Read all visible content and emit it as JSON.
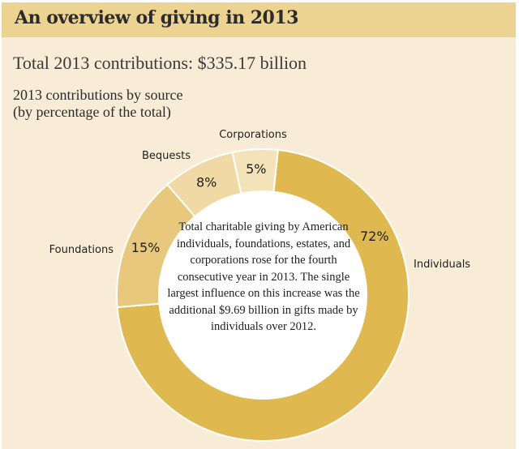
{
  "header": {
    "title": "An overview of giving in 2013"
  },
  "total": "Total 2013 contributions: $335.17 billion",
  "chart_data": {
    "type": "pie",
    "donut": true,
    "title": "2013 contributions by source",
    "subtitle": "(by percentage of the total)",
    "categories": [
      "Individuals",
      "Foundations",
      "Bequests",
      "Corporations"
    ],
    "values": [
      72,
      15,
      8,
      5
    ],
    "value_labels": [
      "72%",
      "15%",
      "8%",
      "5%"
    ],
    "colors": [
      "#dfb84f",
      "#e8c87c",
      "#f0d9a4",
      "#f4e2b8"
    ],
    "center_text": "Total charitable giving by American individuals, foundations, estates, and corporations rose for the fourth consecutive year in 2013. The single largest influence on this increase was the additional $9.69 billion in gifts made by individuals over 2012."
  }
}
